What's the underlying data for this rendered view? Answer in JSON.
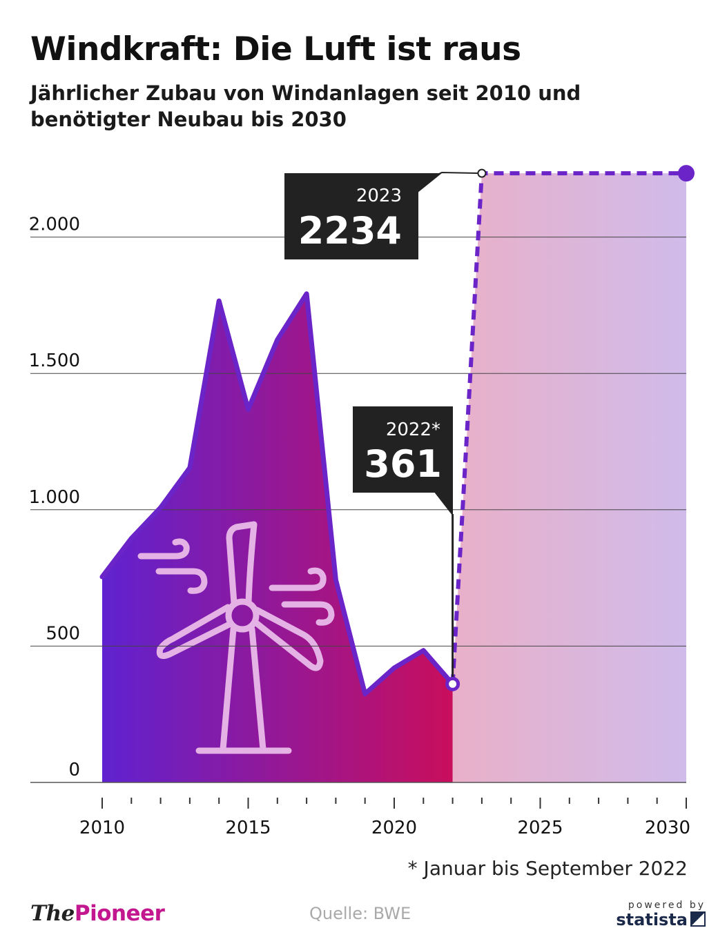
{
  "title": "Windkraft: Die Luft ist raus",
  "subtitle": "Jährlicher Zubau von Windanlagen seit 2010 und benötigter Neubau bis 2030",
  "footnote": "* Januar bis September 2022",
  "source": "Quelle: BWE",
  "brand": {
    "the": "The",
    "name": "Pioneer"
  },
  "powered": {
    "by": "powered by",
    "logo": "statista"
  },
  "colors": {
    "line": "#6a24c8",
    "area_start": "#5f22d0",
    "area_end": "#c90e5c",
    "target_start": "#e9b0c8",
    "target_end": "#d0bbea",
    "annotation_box": "#222222",
    "icon": "#e4b2e4"
  },
  "icons": {
    "turbine": "wind-turbine-icon",
    "wind": "wind-gust-icon"
  },
  "chart_data": {
    "type": "area",
    "x": [
      2010,
      2011,
      2012,
      2013,
      2014,
      2015,
      2016,
      2017,
      2018,
      2019,
      2020,
      2021,
      2022
    ],
    "values": [
      754,
      895,
      1008,
      1154,
      1766,
      1368,
      1624,
      1792,
      743,
      325,
      420,
      484,
      361
    ],
    "target": {
      "x": [
        2022,
        2023,
        2030
      ],
      "values": [
        361,
        2234,
        2234
      ],
      "style": "dashed"
    },
    "xlim": [
      2010,
      2030
    ],
    "ylim": [
      0,
      2250
    ],
    "x_ticks": [
      2010,
      2015,
      2020,
      2025,
      2030
    ],
    "x_tick_labels": [
      "2010",
      "2015",
      "2020",
      "2025",
      "2030"
    ],
    "y_ticks": [
      0,
      500,
      1000,
      1500,
      2000
    ],
    "y_tick_labels": [
      "0",
      "500",
      "1.000",
      "1.500",
      "2.000"
    ],
    "grid": true,
    "annotations": [
      {
        "x": 2023,
        "value": 2234,
        "year_label": "2023",
        "value_label": "2234"
      },
      {
        "x": 2022,
        "value": 361,
        "year_label": "2022*",
        "value_label": "361"
      }
    ]
  }
}
